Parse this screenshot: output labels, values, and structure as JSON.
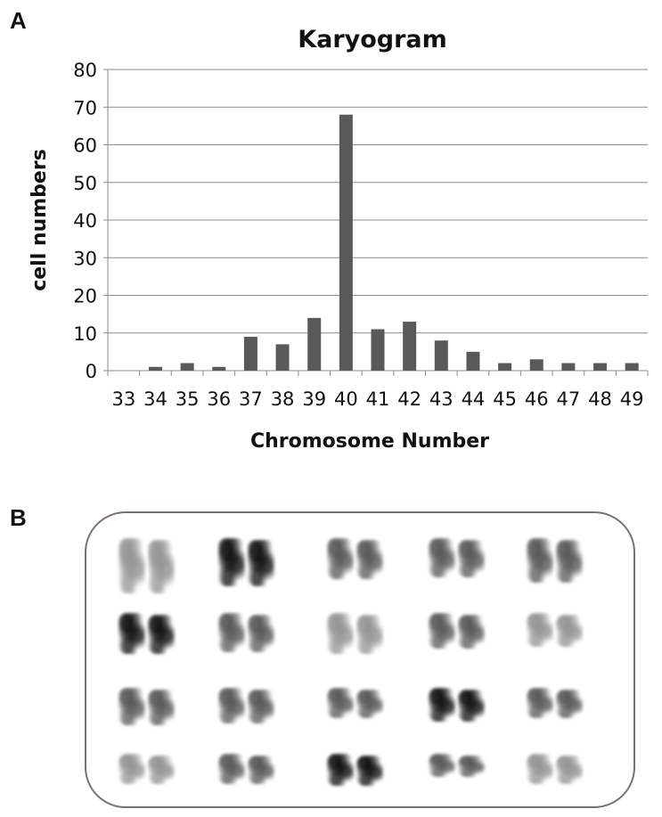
{
  "panel_a_label": "A",
  "panel_b_label": "B",
  "chart_data": {
    "type": "bar",
    "title": "Karyogram",
    "xlabel": "Chromosome Number",
    "ylabel": "cell numbers",
    "categories": [
      "33",
      "34",
      "35",
      "36",
      "37",
      "38",
      "39",
      "40",
      "41",
      "42",
      "43",
      "44",
      "45",
      "46",
      "47",
      "48",
      "49"
    ],
    "values": [
      0,
      1,
      2,
      1,
      9,
      7,
      14,
      68,
      11,
      13,
      8,
      5,
      2,
      3,
      2,
      2,
      2
    ],
    "ylim": [
      0,
      80
    ],
    "yticks": [
      0,
      10,
      20,
      30,
      40,
      50,
      60,
      70,
      80
    ],
    "grid": true,
    "bar_color": "#595959"
  },
  "karyotype_image": {
    "description_rows": 4,
    "pairs_per_row": 5
  }
}
